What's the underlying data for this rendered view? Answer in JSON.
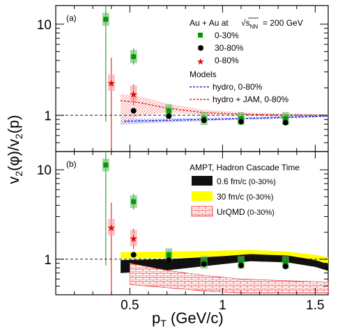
{
  "chart_data": [
    {
      "type": "scatter",
      "panel_label": "(a)",
      "xlabel": "p_T (GeV/c)",
      "ylabel": "v_2(φ)/v_2(p)",
      "xlim": [
        0.1,
        1.57
      ],
      "ylim": [
        0.4,
        16
      ],
      "yscale": "log",
      "legend": {
        "title": "Au + Au at",
        "energy": "= 200 GeV",
        "energy_symbol": "√s",
        "energy_sub": "NN",
        "entries": [
          "0-30%",
          "30-80%",
          "0-80%"
        ],
        "models_title": "Models",
        "model_entries": [
          "hydro, 0-80%",
          "hydro + JAM, 0-80%"
        ]
      },
      "series": [
        {
          "name": "0-30%",
          "marker": "square",
          "color": "#009900",
          "x": [
            0.37,
            0.52,
            0.71,
            0.9,
            1.1,
            1.34
          ],
          "y": [
            11.3,
            4.4,
            1.12,
            0.92,
            0.92,
            0.92
          ],
          "ylo": [
            0.85,
            3.6,
            1.0,
            0.86,
            0.84,
            0.84
          ],
          "yhi": [
            35,
            5.4,
            1.26,
            0.98,
            0.99,
            0.99
          ]
        },
        {
          "name": "30-80%",
          "marker": "circle",
          "color": "#000000",
          "x": [
            0.52,
            0.71,
            0.9,
            1.1,
            1.34
          ],
          "y": [
            1.12,
            0.98,
            0.88,
            0.85,
            0.83
          ]
        },
        {
          "name": "0-80%",
          "marker": "star",
          "color": "#ee0000",
          "x": [
            0.4,
            0.52
          ],
          "y": [
            2.25,
            1.7
          ],
          "ylo": [
            0.3,
            1.3
          ],
          "yhi": [
            4.3,
            2.2
          ]
        }
      ],
      "bands": [
        {
          "name": "hydro, 0-80%",
          "color": "#0000cc",
          "line": "dashed",
          "x": [
            0.45,
            0.6,
            0.8,
            1.0,
            1.2,
            1.4,
            1.57
          ],
          "y": [
            0.86,
            0.87,
            0.89,
            0.91,
            0.93,
            0.96,
            0.98
          ],
          "lo": [
            0.79,
            0.82,
            0.85,
            0.88,
            0.9,
            0.93,
            0.96
          ],
          "hi": [
            0.93,
            0.92,
            0.93,
            0.94,
            0.96,
            0.99,
            1.0
          ]
        },
        {
          "name": "hydro + JAM, 0-80%",
          "color": "#dd0000",
          "line": "dashed",
          "x": [
            0.45,
            0.55,
            0.7,
            0.9,
            1.1,
            1.3,
            1.57
          ],
          "y": [
            1.45,
            1.38,
            1.2,
            1.07,
            1.03,
            1.01,
            1.0
          ],
          "lo": [
            0.84,
            0.98,
            1.08,
            1.0,
            0.99,
            0.98,
            0.98
          ],
          "hi": [
            1.72,
            1.62,
            1.35,
            1.15,
            1.08,
            1.05,
            1.03
          ]
        }
      ]
    },
    {
      "type": "scatter",
      "panel_label": "(b)",
      "xlabel": "p_T (GeV/c)",
      "ylabel": "v_2(φ)/v_2(p)",
      "xlim": [
        0.1,
        1.57
      ],
      "ylim": [
        0.4,
        16
      ],
      "yscale": "log",
      "x_ticks": [
        "0.5",
        "1",
        "1.5"
      ],
      "y_ticks": [
        "1",
        "10"
      ],
      "legend": {
        "title": "AMPT, Hadron Cascade Time",
        "entries": [
          {
            "label": "0.6 fm/c",
            "suffix": "(0-30%)"
          },
          {
            "label": "30 fm/c",
            "suffix": "(0-30%)"
          },
          {
            "label": "UrQMD",
            "suffix": "(0-30%)"
          }
        ]
      },
      "series": [
        {
          "name": "0-30%",
          "marker": "square",
          "color": "#009900",
          "x": [
            0.37,
            0.52,
            0.71,
            0.9,
            1.1,
            1.34
          ],
          "y": [
            11.3,
            4.4,
            1.12,
            0.92,
            0.92,
            0.92
          ],
          "ylo": [
            0.85,
            3.6,
            1.0,
            0.86,
            0.84,
            0.84
          ],
          "yhi": [
            35,
            5.4,
            1.26,
            0.98,
            0.99,
            0.99
          ]
        },
        {
          "name": "30-80%",
          "marker": "circle",
          "color": "#000000",
          "x": [
            0.52,
            0.71,
            0.9,
            1.1,
            1.34
          ],
          "y": [
            1.12,
            0.98,
            0.88,
            0.85,
            0.83
          ]
        },
        {
          "name": "0-80%",
          "marker": "star",
          "color": "#ee0000",
          "x": [
            0.4,
            0.52
          ],
          "y": [
            2.25,
            1.7
          ],
          "ylo": [
            0.3,
            1.3
          ],
          "yhi": [
            4.3,
            2.2
          ]
        }
      ],
      "bands": [
        {
          "name": "30 fm/c",
          "color": "#ffff00",
          "x": [
            0.45,
            0.7,
            1.0,
            1.15,
            1.35,
            1.5,
            1.57
          ],
          "lo": [
            1.02,
            1.03,
            1.08,
            1.12,
            1.06,
            0.95,
            0.88
          ],
          "hi": [
            1.2,
            1.22,
            1.25,
            1.27,
            1.22,
            1.12,
            1.05
          ]
        },
        {
          "name": "0.6 fm/c",
          "color": "#000000",
          "x": [
            0.45,
            0.7,
            1.0,
            1.15,
            1.35,
            1.5,
            1.57
          ],
          "lo": [
            0.7,
            0.75,
            0.88,
            0.95,
            0.92,
            0.82,
            0.74
          ],
          "hi": [
            0.98,
            1.0,
            1.08,
            1.14,
            1.1,
            0.98,
            0.88
          ]
        },
        {
          "name": "UrQMD",
          "color": "#ee0000",
          "x": [
            0.5,
            0.7,
            0.9,
            1.1,
            1.3,
            1.5,
            1.57
          ],
          "lo": [
            0.52,
            0.48,
            0.44,
            0.42,
            0.42,
            0.42,
            0.42
          ],
          "hi": [
            0.9,
            0.75,
            0.66,
            0.6,
            0.58,
            0.56,
            0.55
          ]
        }
      ]
    }
  ],
  "axis_text": {
    "ylabel_main": "v",
    "ylabel_a": "2",
    "ylabel_phi": "(φ)/v",
    "ylabel_b": "2",
    "ylabel_p": "(p)",
    "xlabel_main": "p",
    "xlabel_sub": "T",
    "xlabel_units": " (GeV/c)"
  }
}
